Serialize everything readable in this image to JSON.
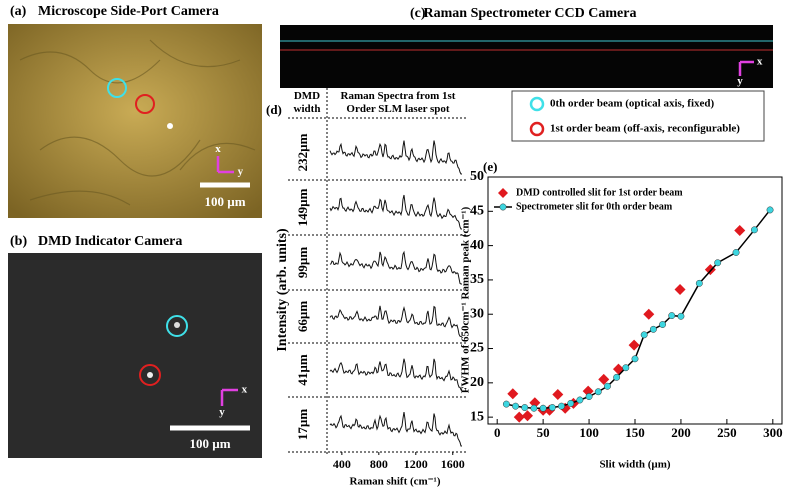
{
  "panels": [
    {
      "label": "(a)",
      "title": "Microscope Side-Port Camera",
      "scale_bar": "100 µm",
      "axes": [
        "x",
        "y"
      ]
    },
    {
      "label": "(b)",
      "title": "DMD Indicator Camera",
      "scale_bar": "100 µm",
      "axes": [
        "x",
        "y"
      ]
    },
    {
      "label": "(c)",
      "title": "Raman Spectrometer CCD Camera",
      "axes": [
        "x",
        "y"
      ]
    },
    {
      "label": "(d)",
      "column_headers": [
        "DMD width",
        "Raman Spectra from 1st Order SLM laser spot"
      ],
      "rows": [
        "232µm",
        "149µm",
        "99µm",
        "66µm",
        "41µm",
        "17µm"
      ],
      "y_label": "Intensity (arb. units)",
      "x_label": "Raman shift (cm⁻¹)",
      "xlim": [
        250,
        1700
      ],
      "xticks": [
        400,
        800,
        1200,
        1600
      ]
    }
  ],
  "beam_legend": [
    "0th order beam (optical axis, fixed)",
    "1st order beam (off-axis, reconfigurable)"
  ],
  "chart_data": {
    "type": "scatter",
    "label": "(e)",
    "x_label": "Slit width (µm)",
    "y_label": "FWHM of 650cm⁻¹ Raman peak (cm⁻¹)",
    "xlim": [
      -10,
      310
    ],
    "ylim": [
      14,
      50
    ],
    "xticks": [
      0,
      50,
      100,
      150,
      200,
      250,
      300
    ],
    "yticks": [
      15,
      20,
      25,
      30,
      35,
      40,
      45,
      50
    ],
    "legend": "upper left",
    "series": [
      {
        "name": "DMD controlled slit for 1st order beam",
        "color": "#e0191f",
        "marker": "diamond",
        "x": [
          17,
          24,
          33,
          41,
          50,
          57,
          66,
          74,
          83,
          99,
          116,
          132,
          149,
          165,
          199,
          232,
          264
        ],
        "values": [
          18.4,
          15,
          15.2,
          17.1,
          16,
          16,
          18.3,
          16.3,
          17,
          18.8,
          20.5,
          22,
          25.5,
          30,
          33.6,
          36.5,
          42.2
        ]
      },
      {
        "name": "Spectrometer slit for 0th order beam",
        "color": "#3dd6e0",
        "line_color": "#000000",
        "marker": "circle",
        "x": [
          10,
          20,
          30,
          40,
          50,
          60,
          70,
          80,
          90,
          100,
          110,
          120,
          130,
          140,
          150,
          160,
          170,
          180,
          190,
          200,
          220,
          240,
          260,
          280,
          297
        ],
        "values": [
          16.9,
          16.6,
          16.4,
          16.3,
          16.3,
          16.4,
          16.6,
          17,
          17.5,
          18,
          18.7,
          19.5,
          20.8,
          22.2,
          23.5,
          27,
          27.8,
          28.5,
          29.8,
          29.7,
          34.5,
          37.5,
          39,
          42.3,
          45.2
        ]
      }
    ]
  }
}
